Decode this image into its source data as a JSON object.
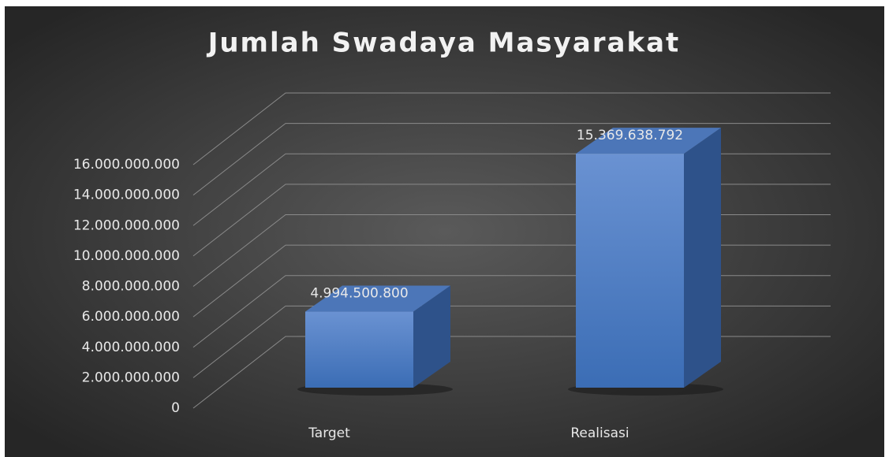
{
  "chart_data": {
    "type": "bar",
    "title": "Jumlah Swadaya Masyarakat",
    "categories": [
      "Target",
      "Realisasi"
    ],
    "values": [
      4994500800,
      15369638792
    ],
    "value_labels": [
      "4.994.500.800",
      "15.369.638.792"
    ],
    "color": "#4a7bc4",
    "ylim": [
      0,
      16000000000
    ],
    "yticks": [
      0,
      {
        "value": 2000000000,
        "label": "2.000.000.000"
      },
      {
        "value": 4000000000,
        "label": "4.000.000.000"
      },
      {
        "value": 6000000000,
        "label": "6.000.000.000"
      },
      {
        "value": 8000000000,
        "label": "8.000.000.000"
      },
      {
        "value": 10000000000,
        "label": "10.000.000.000"
      },
      {
        "value": 12000000000,
        "label": "12.000.000.000"
      },
      {
        "value": 14000000000,
        "label": "14.000.000.000"
      },
      {
        "value": 16000000000,
        "label": "16.000.000.000"
      }
    ],
    "grid": true
  }
}
